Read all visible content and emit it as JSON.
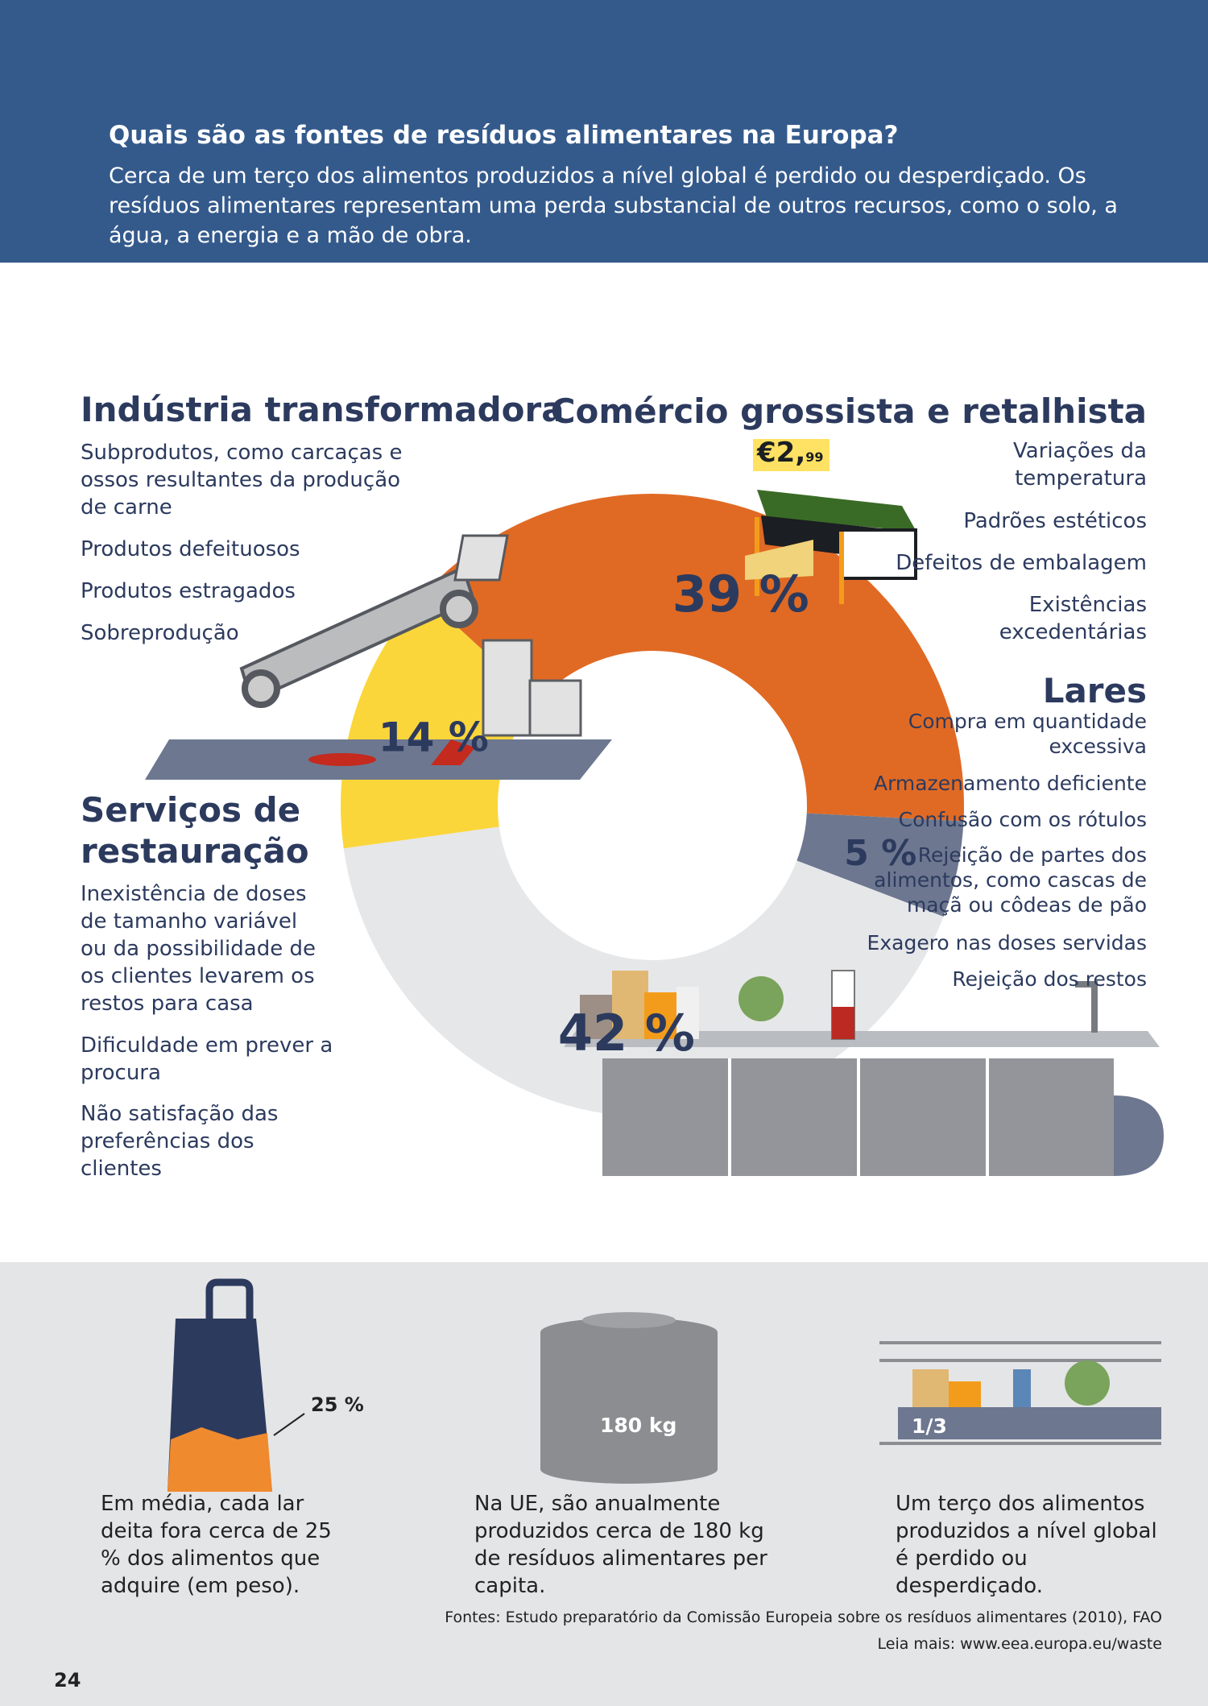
{
  "header": {
    "title": "Quais são as fontes de resíduos alimentares na Europa?",
    "description": "Cerca de um terço dos alimentos produzidos a nível global é perdido ou desperdiçado. Os resíduos alimentares representam uma perda substancial de outros recursos, como o solo, a água, a energia e a mão de obra."
  },
  "colors": {
    "header_bg": "#345a8c",
    "industry": "#e06a24",
    "retail": "#6d7790",
    "households": "#e6e7e9",
    "food_services": "#fbd63a",
    "bottom_bg": "#e4e5e6"
  },
  "sections": {
    "industry": {
      "title": "Indústria transformadora",
      "items": [
        "Subprodutos, como carcaças e ossos resultantes da produção de carne",
        "Produtos defeituosos",
        "Produtos estragados",
        "Sobreprodução"
      ]
    },
    "retail": {
      "title": "Comércio grossista e retalhista",
      "price_tag": "€2,",
      "price_cents": "99",
      "items": [
        "Variações da temperatura",
        "Padrões estéticos",
        "Defeitos de embalagem",
        "Existências excedentárias"
      ]
    },
    "households": {
      "title": "Lares",
      "items": [
        "Compra em quantidade excessiva",
        "Armazenamento deficiente",
        "Confusão com os rótulos",
        "Rejeição de partes dos alimentos, como cascas de maçã ou côdeas de pão",
        "Exagero nas doses servidas",
        "Rejeição dos restos"
      ]
    },
    "food_services": {
      "title_line1": "Serviços de",
      "title_line2": "restauração",
      "items": [
        "Inexistência de doses de tamanho variável ou da possibilidade de os clientes levarem os restos para casa",
        "Dificuldade em prever a procura",
        "Não satisfação das preferências dos clientes"
      ]
    }
  },
  "chart_data": {
    "type": "pie",
    "variant": "donut",
    "slices": [
      {
        "key": "industry",
        "value": 39,
        "label": "39 %",
        "color": "#e06a24"
      },
      {
        "key": "retail",
        "value": 5,
        "label": "5 %",
        "color": "#6d7790"
      },
      {
        "key": "households",
        "value": 42,
        "label": "42 %",
        "color": "#e6e7e9"
      },
      {
        "key": "food_services",
        "value": 14,
        "label": "14 %",
        "color": "#fbd63a"
      }
    ]
  },
  "stats": {
    "bag": {
      "value": "25 %",
      "text": "Em média, cada lar deita fora cerca de 25 % dos alimentos que adquire (em peso)."
    },
    "bin": {
      "value": "180 kg",
      "text": "Na UE, são anualmente produzidos cerca de 180 kg de resíduos alimentares per capita."
    },
    "shelf": {
      "value": "1/3",
      "text": "Um terço dos alimentos produzidos a nível global é perdido ou desperdiçado."
    }
  },
  "footer": {
    "sources": "Fontes: Estudo preparatório da Comissão Europeia sobre os resíduos alimentares (2010), FAO",
    "read_more": "Leia mais: www.eea.europa.eu/waste",
    "page_number": "24"
  }
}
